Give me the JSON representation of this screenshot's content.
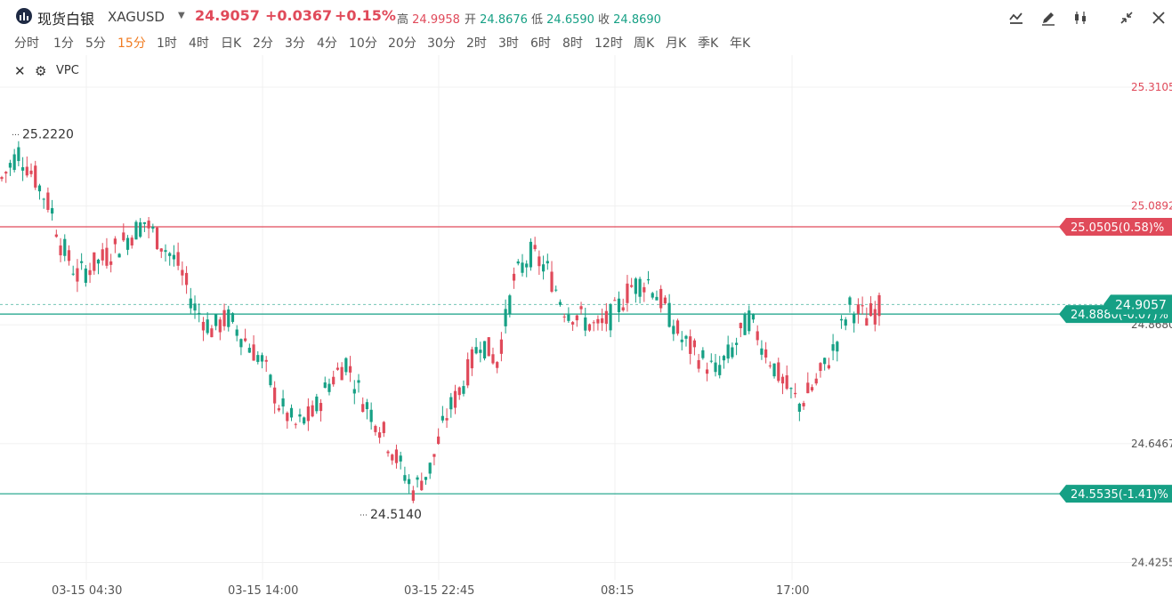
{
  "header": {
    "name": "现货白银",
    "symbol": "XAGUSD",
    "price": "24.9057",
    "change": "+0.0367",
    "change_pct": "+0.15%",
    "high_label": "高",
    "high": "24.9958",
    "open_label": "开",
    "open": "24.8676",
    "low_label": "低",
    "low": "24.6590",
    "close_label": "收",
    "close": "24.8690"
  },
  "colors": {
    "up": "#e04a5a",
    "down": "#16a085",
    "accent_orange": "#f07c22",
    "grid": "#f0f0f0"
  },
  "toolbar": {
    "icons": [
      "indicator-icon",
      "draw-icon",
      "candle-type-icon",
      "fullscreen-icon",
      "close-icon"
    ]
  },
  "periods": [
    "分时",
    "1分",
    "5分",
    "15分",
    "1时",
    "4时",
    "日K",
    "2分",
    "3分",
    "4分",
    "10分",
    "20分",
    "30分",
    "2时",
    "3时",
    "6时",
    "8时",
    "12时",
    "周K",
    "月K",
    "季K",
    "年K"
  ],
  "active_period": "15分",
  "indicator": {
    "name": "VPC",
    "icons": [
      "close-icon",
      "gear-icon"
    ]
  },
  "chart_data": {
    "type": "candlestick",
    "y_axis": {
      "ticks": [
        "25.3105",
        "25.0892",
        "24.8680",
        "24.6467",
        "24.4255"
      ],
      "range": [
        24.37,
        25.37
      ]
    },
    "x_axis": {
      "ticks": [
        "03-15 04:30",
        "03-15 14:00",
        "03-15 22:45",
        "08:15",
        "17:00"
      ]
    },
    "max_marker": "25.2220",
    "min_marker": "24.5140",
    "horizontal_lines": [
      {
        "label": "25.0505(0.58)%",
        "value": 25.0505,
        "color": "#e04a5a"
      },
      {
        "label": "24.8880(-0.07)%",
        "value": 24.888,
        "color": "#16a085"
      },
      {
        "label": "24.5535(-1.41)%",
        "value": 24.5535,
        "color": "#16a085"
      }
    ],
    "current_price_label": "24.9057",
    "current_price": 24.9057,
    "grid": true
  }
}
